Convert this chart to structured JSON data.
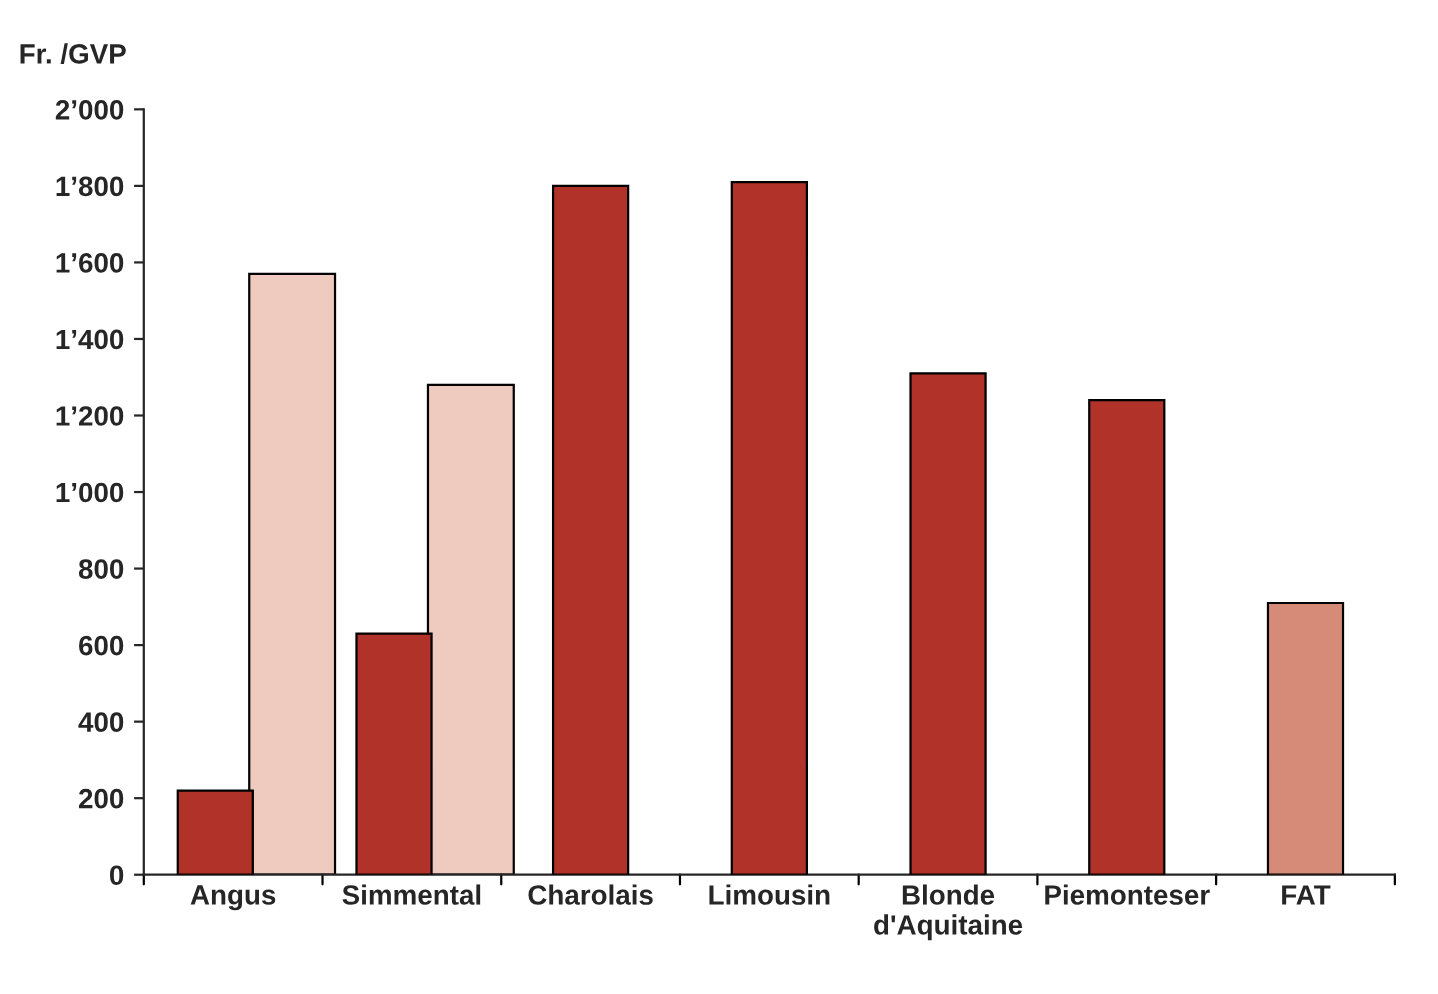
{
  "chart_data": {
    "type": "bar",
    "ylabel": "Fr. /GVP",
    "categories": [
      "Angus",
      "Simmental",
      "Charolais",
      "Limousin",
      "Blonde\nd'Aquitaine",
      "Piemonteser",
      "FAT"
    ],
    "series": [
      {
        "color": "#b03228",
        "colors": [
          "#b03228",
          "#b03228",
          "#b03228",
          "#b03228",
          "#b03228",
          "#b03228",
          "#d68b78"
        ],
        "values": [
          220,
          630,
          1800,
          1810,
          1310,
          1240,
          710
        ]
      },
      {
        "color": "#efcbbf",
        "values": [
          1570,
          1280,
          null,
          null,
          null,
          null,
          null
        ]
      }
    ],
    "ylim": [
      0,
      2000
    ],
    "yticks": [
      0,
      200,
      400,
      600,
      800,
      {
        "value": 1000,
        "label": "1’000"
      },
      {
        "value": 1200,
        "label": "1’200"
      },
      {
        "value": 1400,
        "label": "1’400"
      },
      {
        "value": 1600,
        "label": "1’600"
      },
      {
        "value": 1800,
        "label": "1’800"
      },
      {
        "value": 2000,
        "label": "2’000"
      }
    ],
    "grid": false,
    "legend": false
  }
}
